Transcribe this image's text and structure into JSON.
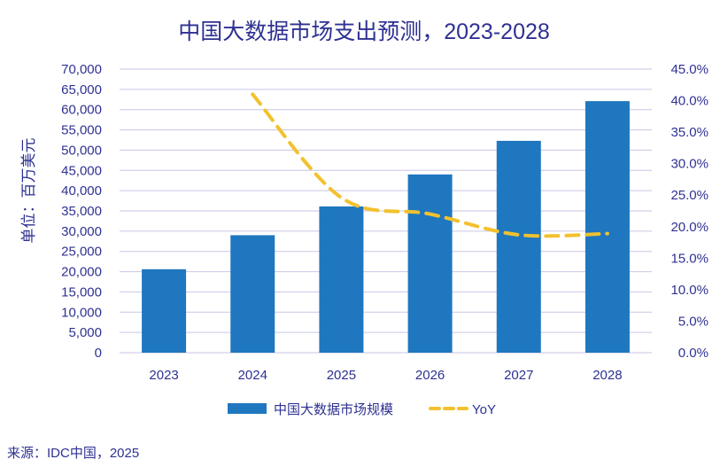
{
  "chart_data": {
    "type": "bar",
    "title": "中国大数据市场支出预测，2023-2028",
    "categories": [
      "2023",
      "2024",
      "2025",
      "2026",
      "2027",
      "2028"
    ],
    "series": [
      {
        "name": "中国大数据市场规模",
        "type": "bar",
        "axis": "left",
        "color": "#1f77c0",
        "values": [
          20600,
          29000,
          36100,
          44000,
          52300,
          62100
        ]
      },
      {
        "name": "YoY",
        "type": "line",
        "style": "dashed",
        "axis": "right",
        "color": "#f2c12e",
        "values": [
          null,
          41.0,
          24.6,
          22.0,
          18.7,
          18.9
        ]
      }
    ],
    "ylabel": "单位：百万美元",
    "ylim": [
      0,
      70000
    ],
    "yticks": [
      "0",
      "5,000",
      "10,000",
      "15,000",
      "20,000",
      "25,000",
      "30,000",
      "35,000",
      "40,000",
      "45,000",
      "50,000",
      "55,000",
      "60,000",
      "65,000",
      "70,000"
    ],
    "y2lim": [
      0,
      45
    ],
    "y2ticks": [
      "0.0%",
      "5.0%",
      "10.0%",
      "15.0%",
      "20.0%",
      "25.0%",
      "30.0%",
      "35.0%",
      "40.0%",
      "45.0%"
    ],
    "grid": true,
    "legend_position": "bottom",
    "source": "来源：IDC中国，2025"
  }
}
